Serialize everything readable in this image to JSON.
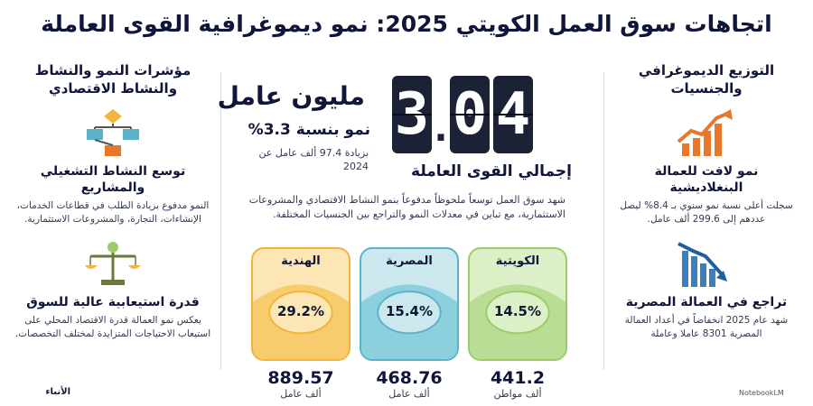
{
  "title": "اتجاهات سوق العمل الكويتي 2025: نمو ديموغرافية القوى العاملة",
  "right_col": {
    "heading": "التوزيع الديموغرافي والجنسيات",
    "item1": {
      "title": "نمو لافت للعمالة البنغلاديشية",
      "text": "سجلت أعلى نسبة نمو سنوي بـ 8.4% ليصل عددهم إلى 299.6 ألف عامل."
    },
    "item2": {
      "title": "تراجع في العمالة المصرية",
      "text": "شهد عام 2025 انخفاضاً في أعداد العمالة المصرية 8301 عاملا وعاملة"
    }
  },
  "left_col": {
    "heading": "مؤشرات النمو والنشاط والنشاط الاقتصادي",
    "item1": {
      "title": "توسع النشاط التشغيلي والمشاريع",
      "text": "النمو مدفوع بزيادة الطلب في قطاعات الخدمات، الإنشاءات، التجارة، والمشروعات الاستثمارية."
    },
    "item2": {
      "title": "قدرة استيعابية عالية للسوق",
      "text": "يعكس نمو العمالة قدرة الاقتصاد المحلي على استيعاب الاحتياجات المتزايدة لمختلف التخصصات."
    }
  },
  "center": {
    "digits": [
      "3",
      "0",
      "4"
    ],
    "dot": ".",
    "counter_label": "إجمالي القوى العاملة",
    "million": "مليون عامل",
    "growth": "نمو بنسبة 3.3%",
    "increase": "بزيادة 97.4 ألف عامل عن 2024",
    "paragraph": "شهد سوق العمل توسعاً ملحوظاً مدفوعاً بنمو النشاط الاقتصادي والمشروعات الاستثمارية، مع تباين في معدلات النمو والتراجع بين الجنسيات المختلفة.",
    "cards": [
      {
        "name": "الكويتية",
        "pct": "14.5%",
        "value": "441.2",
        "unit": "ألف مواطن",
        "color": "#9ccc6a",
        "fill": "#dcefc6",
        "dome": "#b9dd94"
      },
      {
        "name": "المصرية",
        "pct": "15.4%",
        "value": "468.76",
        "unit": "ألف عامل",
        "color": "#5bb3c9",
        "fill": "#cbe8ef",
        "dome": "#8ccfdd"
      },
      {
        "name": "الهندية",
        "pct": "29.2%",
        "value": "889.57",
        "unit": "ألف عامل",
        "color": "#f0b53a",
        "fill": "#fbe6b4",
        "dome": "#f6cc6e"
      }
    ]
  },
  "footer": {
    "brand": "الأنباء",
    "credit": "NotebookLM"
  }
}
